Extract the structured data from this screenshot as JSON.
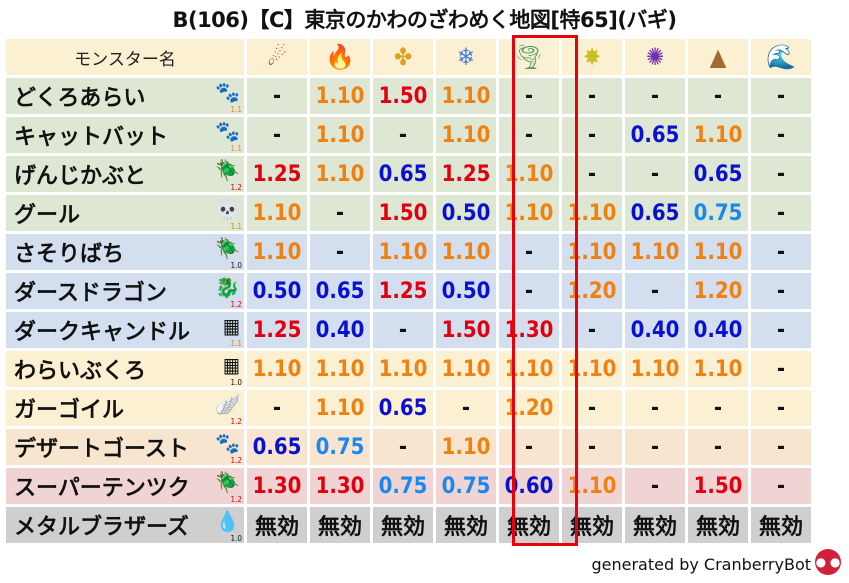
{
  "title": "B(106)【C】東京のかわのざわめく地図[特65](バギ)",
  "header": {
    "name_label": "モンスター名",
    "elements": [
      {
        "name": "fire-meteor-icon",
        "glyph": "☄",
        "color": "#d83010"
      },
      {
        "name": "flame-icon",
        "glyph": "🔥",
        "color": "#e04010"
      },
      {
        "name": "explosion-icon",
        "glyph": "✤",
        "color": "#e0a020"
      },
      {
        "name": "ice-snowflake-icon",
        "glyph": "❄",
        "color": "#4a80e0"
      },
      {
        "name": "wind-tornado-icon",
        "glyph": "🌪",
        "color": "#50a070"
      },
      {
        "name": "light-star-icon",
        "glyph": "✸",
        "color": "#c8c020"
      },
      {
        "name": "dark-shuriken-icon",
        "glyph": "✺",
        "color": "#7030b0"
      },
      {
        "name": "earth-rock-icon",
        "glyph": "▲",
        "color": "#a06a30"
      },
      {
        "name": "water-wave-icon",
        "glyph": "🌊",
        "color": "#2060d0"
      }
    ],
    "highlighted_column": 4
  },
  "value_colors": {
    "strong_weak": "#e00010",
    "weak": "#f08010",
    "resist": "#0a10d0",
    "light_resist": "#1a88f0",
    "neutral": "#111111"
  },
  "rows": [
    {
      "name": "どくろあらい",
      "type": "paw",
      "icon": "🐾",
      "scale": "1.1",
      "bg": "green",
      "values": [
        "-",
        "1.10",
        "1.50",
        "1.10",
        "-",
        "-",
        "-",
        "-",
        "-"
      ]
    },
    {
      "name": "キャットバット",
      "type": "paw",
      "icon": "🐾",
      "scale": "1.1",
      "bg": "green",
      "values": [
        "-",
        "1.10",
        "-",
        "1.10",
        "-",
        "-",
        "0.65",
        "1.10",
        "-"
      ]
    },
    {
      "name": "げんじかぶと",
      "type": "insect",
      "icon": "🪲",
      "scale": "1.2",
      "bg": "green",
      "values": [
        "1.25",
        "1.10",
        "0.65",
        "1.25",
        "1.10",
        "-",
        "-",
        "0.65",
        "-"
      ]
    },
    {
      "name": "グール",
      "type": "zombie",
      "icon": "💀",
      "scale": "1.1",
      "bg": "green",
      "values": [
        "1.10",
        "-",
        "1.50",
        "0.50",
        "1.10",
        "1.10",
        "0.65",
        "0.75",
        "-"
      ]
    },
    {
      "name": "さそりばち",
      "type": "insect",
      "icon": "🪲",
      "scale": "1.0",
      "bg": "blue",
      "values": [
        "1.10",
        "-",
        "1.10",
        "1.10",
        "-",
        "1.10",
        "1.10",
        "1.10",
        "-"
      ]
    },
    {
      "name": "ダースドラゴン",
      "type": "dragon",
      "icon": "🐉",
      "scale": "1.2",
      "bg": "blue",
      "values": [
        "0.50",
        "0.65",
        "1.25",
        "0.50",
        "-",
        "1.20",
        "-",
        "1.20",
        "-"
      ]
    },
    {
      "name": "ダークキャンドル",
      "type": "material",
      "icon": "▦",
      "scale": "1.1",
      "bg": "blue",
      "values": [
        "1.25",
        "0.40",
        "-",
        "1.50",
        "1.30",
        "-",
        "0.40",
        "0.40",
        "-"
      ]
    },
    {
      "name": "わらいぶくろ",
      "type": "material",
      "icon": "▦",
      "scale": "1.0",
      "bg": "yellow",
      "values": [
        "1.10",
        "1.10",
        "1.10",
        "1.10",
        "1.10",
        "1.10",
        "1.10",
        "1.10",
        "-"
      ]
    },
    {
      "name": "ガーゴイル",
      "type": "bird",
      "icon": "🪽",
      "scale": "1.2",
      "bg": "yellow",
      "values": [
        "-",
        "1.10",
        "0.65",
        "-",
        "1.20",
        "-",
        "-",
        "-",
        "-"
      ]
    },
    {
      "name": "デザートゴースト",
      "type": "paw",
      "icon": "🐾",
      "scale": "1.2",
      "bg": "peach",
      "values": [
        "0.65",
        "0.75",
        "-",
        "1.10",
        "-",
        "-",
        "-",
        "-",
        "-"
      ]
    },
    {
      "name": "スーパーテンツク",
      "type": "insect",
      "icon": "🪲",
      "scale": "1.2",
      "bg": "pink",
      "values": [
        "1.30",
        "1.30",
        "0.75",
        "0.75",
        "0.60",
        "1.10",
        "-",
        "1.50",
        "-"
      ]
    },
    {
      "name": "メタルブラザーズ",
      "type": "slime",
      "icon": "💧",
      "scale": "1.0",
      "bg": "gray",
      "values": [
        "無効",
        "無効",
        "無効",
        "無効",
        "無効",
        "無効",
        "無効",
        "無効",
        "無効"
      ]
    }
  ],
  "footer": {
    "text": "generated by CranberryBot",
    "logo": "cranberry-bot-icon"
  }
}
